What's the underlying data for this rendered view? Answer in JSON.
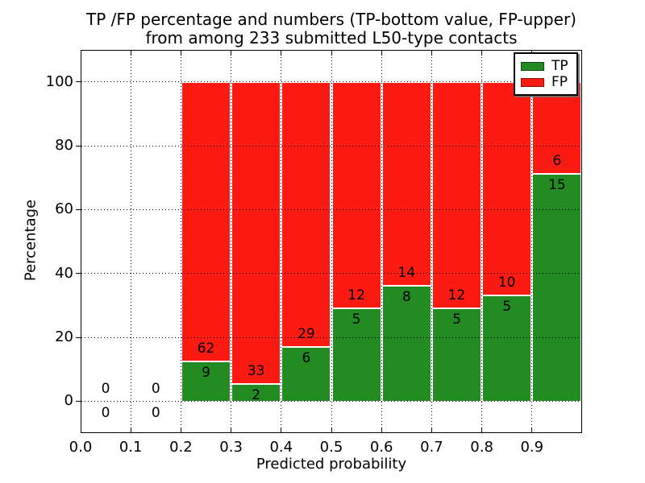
{
  "figure": {
    "title_line1": "TP /FP percentage and numbers (TP-bottom value, FP-upper)",
    "title_line2": "from among 233 submitted L50-type contacts"
  },
  "chart_data": {
    "type": "bar",
    "stacked": true,
    "title": "TP /FP percentage and numbers (TP-bottom value, FP-upper) from among 233 submitted L50-type contacts",
    "xlabel": "Predicted probability",
    "ylabel": "Percentage",
    "xlim": [
      0.0,
      1.0
    ],
    "ylim": [
      -10,
      110
    ],
    "x_ticks": [
      "0.0",
      "0.1",
      "0.2",
      "0.3",
      "0.4",
      "0.5",
      "0.6",
      "0.7",
      "0.8",
      "0.9"
    ],
    "y_ticks": [
      "0",
      "20",
      "40",
      "60",
      "80",
      "100"
    ],
    "grid": "dotted, both axes, drawn above bars",
    "total_contacts": 233,
    "colors": {
      "tp": "#228b22",
      "fp": "#fc1b12",
      "bar_edge": "#ffffff"
    },
    "legend": {
      "position": "upper right",
      "entries": [
        {
          "label": "TP",
          "color": "#228b22"
        },
        {
          "label": "FP",
          "color": "#fc1b12"
        }
      ]
    },
    "bins": [
      {
        "range": [
          0.0,
          0.1
        ],
        "tp_count": 0,
        "fp_count": 0,
        "tp_pct": 0,
        "fp_pct": 0
      },
      {
        "range": [
          0.1,
          0.2
        ],
        "tp_count": 0,
        "fp_count": 0,
        "tp_pct": 0,
        "fp_pct": 0
      },
      {
        "range": [
          0.2,
          0.3
        ],
        "tp_count": 9,
        "fp_count": 62,
        "tp_pct": 12.68,
        "fp_pct": 87.32
      },
      {
        "range": [
          0.3,
          0.4
        ],
        "tp_count": 2,
        "fp_count": 33,
        "tp_pct": 5.71,
        "fp_pct": 94.29
      },
      {
        "range": [
          0.4,
          0.5
        ],
        "tp_count": 6,
        "fp_count": 29,
        "tp_pct": 17.14,
        "fp_pct": 82.86
      },
      {
        "range": [
          0.5,
          0.6
        ],
        "tp_count": 5,
        "fp_count": 12,
        "tp_pct": 29.41,
        "fp_pct": 70.59
      },
      {
        "range": [
          0.6,
          0.7
        ],
        "tp_count": 8,
        "fp_count": 14,
        "tp_pct": 36.36,
        "fp_pct": 63.64
      },
      {
        "range": [
          0.7,
          0.8
        ],
        "tp_count": 5,
        "fp_count": 12,
        "tp_pct": 29.41,
        "fp_pct": 70.59
      },
      {
        "range": [
          0.8,
          0.9
        ],
        "tp_count": 5,
        "fp_count": 10,
        "tp_pct": 33.33,
        "fp_pct": 66.67
      },
      {
        "range": [
          0.9,
          1.0
        ],
        "tp_count": 15,
        "fp_count": 6,
        "tp_pct": 71.43,
        "fp_pct": 28.57
      }
    ]
  }
}
